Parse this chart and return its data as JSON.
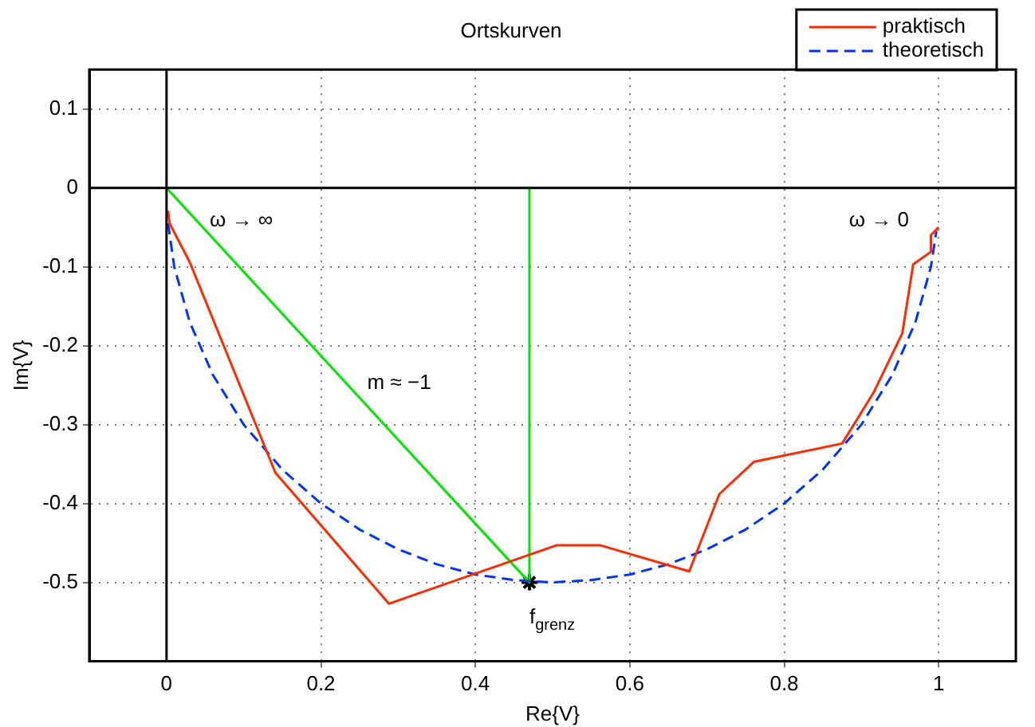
{
  "chart_data": {
    "type": "line",
    "title": "Ortskurven",
    "xlabel": "Re{V}",
    "ylabel": "Im{V}",
    "xlim": [
      -0.1,
      1.1
    ],
    "xticks": [
      0,
      0.2,
      0.4,
      0.6,
      0.8,
      1
    ],
    "ylim": [
      -0.6,
      0.15
    ],
    "yticks": [
      -0.5,
      -0.4,
      -0.3,
      -0.2,
      -0.1,
      0,
      0.1
    ],
    "grid": true,
    "legend": "top right",
    "marker": "none",
    "series": [
      {
        "color": "#000000",
        "line_style": "solid",
        "x": [
          0,
          0
        ],
        "values": [
          -0.6,
          0.15
        ]
      },
      {
        "color": "#000000",
        "line_style": "solid",
        "x": [
          -0.1,
          1.1
        ],
        "values": [
          0,
          0
        ]
      },
      {
        "name": "praktisch",
        "color": "#ff2a00",
        "line_style": "solid",
        "x": [
          0.002,
          0.004,
          0.03,
          0.141,
          0.288,
          0.505,
          0.562,
          0.677,
          0.716,
          0.761,
          0.875,
          0.916,
          0.953,
          0.967,
          0.99,
          0.99,
          1.0
        ],
        "values": [
          -0.029,
          -0.045,
          -0.094,
          -0.361,
          -0.527,
          -0.453,
          -0.453,
          -0.486,
          -0.388,
          -0.347,
          -0.324,
          -0.259,
          -0.184,
          -0.097,
          -0.081,
          -0.06,
          -0.05
        ]
      },
      {
        "name": "theoretisch",
        "color": "#0033ff",
        "line_style": "dashed",
        "x": [
          0.002,
          0.01,
          0.03,
          0.06,
          0.1,
          0.15,
          0.2,
          0.25,
          0.3,
          0.35,
          0.4,
          0.45,
          0.5,
          0.55,
          0.6,
          0.65,
          0.7,
          0.75,
          0.8,
          0.85,
          0.9,
          0.94,
          0.97,
          0.99,
          0.997
        ],
        "values": [
          -0.045,
          -0.1,
          -0.17,
          -0.237,
          -0.3,
          -0.357,
          -0.4,
          -0.433,
          -0.458,
          -0.477,
          -0.49,
          -0.497,
          -0.5,
          -0.497,
          -0.49,
          -0.477,
          -0.458,
          -0.433,
          -0.4,
          -0.357,
          -0.3,
          -0.237,
          -0.17,
          -0.1,
          -0.055
        ]
      },
      {
        "color": "#00e600",
        "line_style": "solid",
        "x": [
          0,
          0.47
        ],
        "values": [
          0,
          -0.5
        ]
      },
      {
        "color": "#00e600",
        "line_style": "solid",
        "x": [
          0.47,
          0.47
        ],
        "values": [
          0,
          -0.5
        ]
      },
      {
        "type": "scatter",
        "color": "#000000",
        "marker": "cross",
        "x": [
          0.47
        ],
        "values": [
          -0.5
        ]
      }
    ],
    "annotations": [
      "ω → ∞",
      "ω → 0",
      "m ≈ −1",
      {
        "text": "f$_{grenz}$",
        "x": 0.47,
        "y": -0.5
      }
    ]
  }
}
